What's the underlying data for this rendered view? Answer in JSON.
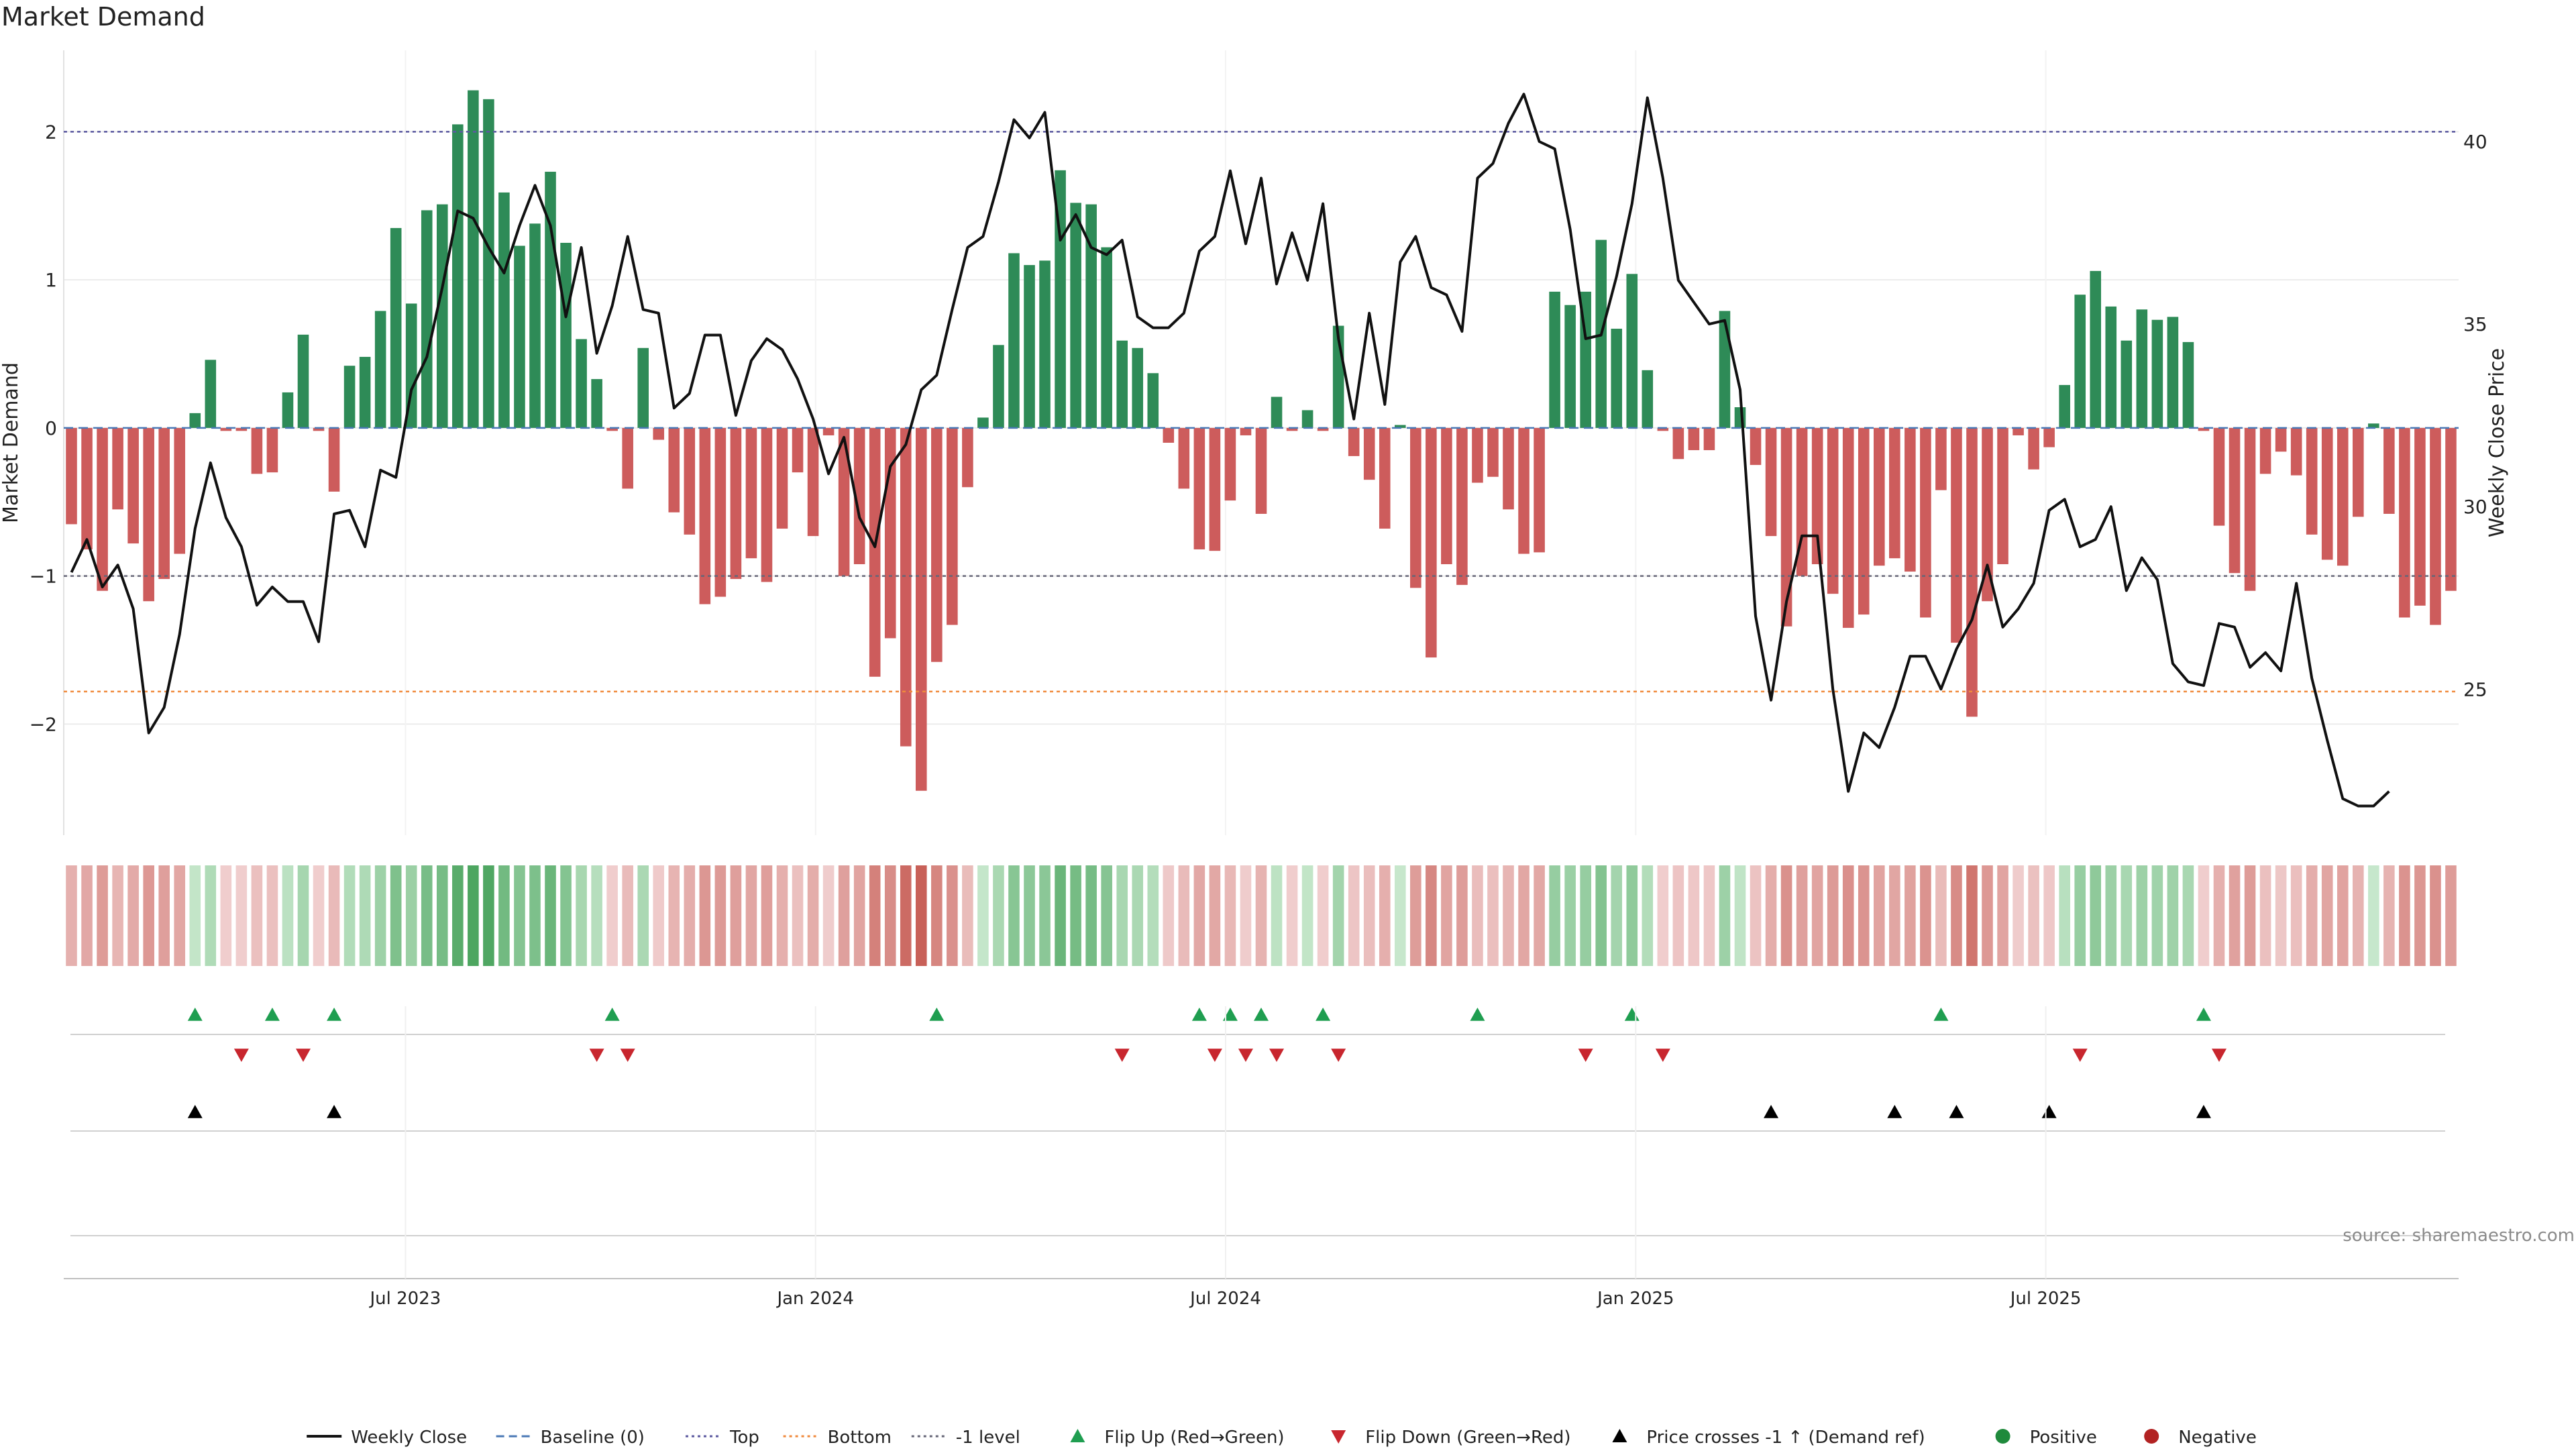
{
  "chart_data": {
    "type": "bar",
    "title": "Market Demand",
    "ylabel": "Market Demand",
    "y2label": "Weekly Close Price",
    "ylim": [
      -2.75,
      2.55
    ],
    "y2lim": [
      21.0,
      42.5
    ],
    "yticks": [
      {
        "v": 2,
        "label": "2"
      },
      {
        "v": 1,
        "label": "1"
      },
      {
        "v": 0,
        "label": "0"
      },
      {
        "v": -1,
        "label": "−1"
      },
      {
        "v": -2,
        "label": "−2"
      }
    ],
    "y2ticks": [
      {
        "v": 40,
        "label": "40"
      },
      {
        "v": 35,
        "label": "35"
      },
      {
        "v": 30,
        "label": "30"
      },
      {
        "v": 25,
        "label": "25"
      }
    ],
    "x_months_range": [
      2023.0,
      2025.92
    ],
    "xticks": [
      {
        "label": "Jul 2023",
        "m": 5
      },
      {
        "label": "Jan 2024",
        "m": 11
      },
      {
        "label": "Jul 2024",
        "m": 17
      },
      {
        "label": "Jan 2025",
        "m": 23
      },
      {
        "label": "Jul 2025",
        "m": 29
      }
    ],
    "reference_lines": {
      "top": 2.0,
      "bottom": -1.78,
      "minus_one": -1.0
    },
    "demand": [
      -0.65,
      -0.82,
      -1.1,
      -0.55,
      -0.78,
      -1.17,
      -1.02,
      -0.85,
      0.1,
      0.46,
      -0.02,
      -0.02,
      -0.31,
      -0.3,
      0.24,
      0.63,
      -0.02,
      -0.43,
      0.42,
      0.48,
      0.79,
      1.35,
      0.84,
      1.47,
      1.51,
      2.05,
      2.28,
      2.22,
      1.59,
      1.23,
      1.38,
      1.73,
      1.25,
      0.6,
      0.33,
      -0.02,
      -0.41,
      0.54,
      -0.08,
      -0.57,
      -0.72,
      -1.19,
      -1.14,
      -1.02,
      -0.88,
      -1.04,
      -0.68,
      -0.3,
      -0.73,
      -0.05,
      -1.0,
      -0.92,
      -1.68,
      -1.42,
      -2.15,
      -2.45,
      -1.58,
      -1.33,
      -0.4,
      0.07,
      0.56,
      1.18,
      1.1,
      1.13,
      1.74,
      1.52,
      1.51,
      1.22,
      0.59,
      0.54,
      0.37,
      -0.1,
      -0.41,
      -0.82,
      -0.83,
      -0.49,
      -0.05,
      -0.58,
      0.21,
      -0.02,
      0.12,
      -0.02,
      0.69,
      -0.19,
      -0.35,
      -0.68,
      0.02,
      -1.08,
      -1.55,
      -0.92,
      -1.06,
      -0.37,
      -0.33,
      -0.55,
      -0.85,
      -0.84,
      0.92,
      0.83,
      0.92,
      1.27,
      0.67,
      1.04,
      0.39,
      -0.02,
      -0.21,
      -0.15,
      -0.15,
      0.79,
      0.14,
      -0.25,
      -0.73,
      -1.34,
      -1.0,
      -0.92,
      -1.12,
      -1.35,
      -1.26,
      -0.93,
      -0.88,
      -0.97,
      -1.28,
      -0.42,
      -1.45,
      -1.95,
      -1.17,
      -0.92,
      -0.05,
      -0.28,
      -0.13,
      0.29,
      0.9,
      1.06,
      0.82,
      0.59,
      0.8,
      0.73,
      0.75,
      0.58,
      -0.02,
      -0.66,
      -0.98,
      -1.1,
      -0.31,
      -0.16,
      -0.32,
      -0.72,
      -0.89,
      -0.93,
      -0.6,
      0.03,
      -0.58,
      -1.28,
      -1.2,
      -1.33,
      -1.1
    ],
    "price": [
      28.2,
      29.1,
      27.8,
      28.4,
      27.2,
      23.8,
      24.5,
      26.5,
      29.4,
      31.2,
      29.7,
      28.9,
      27.3,
      27.8,
      27.4,
      27.4,
      26.3,
      29.8,
      29.9,
      28.9,
      31.0,
      30.8,
      33.2,
      34.1,
      36.0,
      38.1,
      37.9,
      37.1,
      36.4,
      37.7,
      38.8,
      37.7,
      35.2,
      37.1,
      34.2,
      35.5,
      37.4,
      35.4,
      35.3,
      32.7,
      33.1,
      34.7,
      34.7,
      32.5,
      34.0,
      34.6,
      34.3,
      33.5,
      32.4,
      30.9,
      31.9,
      29.7,
      28.9,
      31.1,
      31.7,
      33.2,
      33.6,
      35.4,
      37.1,
      37.4,
      38.9,
      40.6,
      40.1,
      40.8,
      37.3,
      38.0,
      37.1,
      36.9,
      37.3,
      35.2,
      34.9,
      34.9,
      35.3,
      37.0,
      37.4,
      39.2,
      37.2,
      39.0,
      36.1,
      37.5,
      36.2,
      38.3,
      34.6,
      32.4,
      35.3,
      32.8,
      36.7,
      37.4,
      36.0,
      35.8,
      34.8,
      39.0,
      39.4,
      40.5,
      41.3,
      40.0,
      39.8,
      37.6,
      34.6,
      34.7,
      36.3,
      38.3,
      41.2,
      39.0,
      36.2,
      35.6,
      35.0,
      35.1,
      33.2,
      27.0,
      24.7,
      27.4,
      29.2,
      29.2,
      25.0,
      22.2,
      23.8,
      23.4,
      24.5,
      25.9,
      25.9,
      25.0,
      26.1,
      26.9,
      28.4,
      26.7,
      27.2,
      27.9,
      29.9,
      30.2,
      28.9,
      29.1,
      30.0,
      27.7,
      28.6,
      28.0,
      25.7,
      25.2,
      25.1,
      26.8,
      26.7,
      25.6,
      26.0,
      25.5,
      27.9,
      25.3,
      23.6,
      22.0,
      21.8,
      21.8,
      22.2
    ],
    "signals": {
      "flip_up_idx": [
        8,
        13,
        17,
        35,
        56,
        73,
        75,
        77,
        81,
        91,
        101,
        121,
        138
      ],
      "flip_down_idx": [
        11,
        15,
        34,
        36,
        68,
        74,
        76,
        78,
        82,
        98,
        103,
        130,
        139
      ],
      "price_cross_idx": [
        8,
        17,
        110,
        118,
        122,
        128,
        138
      ]
    },
    "legend": [
      {
        "label": "Weekly Close",
        "kind": "line",
        "color": "#111111"
      },
      {
        "label": "Baseline (0)",
        "kind": "dash",
        "color": "#4a78b5"
      },
      {
        "label": "Top",
        "kind": "dot",
        "color": "#5c5aa0"
      },
      {
        "label": "Bottom",
        "kind": "dot",
        "color": "#f08a3c"
      },
      {
        "label": "-1 level",
        "kind": "dot",
        "color": "#666677"
      },
      {
        "label": "Flip Up (Red→Green)",
        "kind": "tri-up",
        "color": "#1f9e50"
      },
      {
        "label": "Flip Down (Green→Red)",
        "kind": "tri-down",
        "color": "#c8262e"
      },
      {
        "label": "Price crosses -1 ↑ (Demand ref)",
        "kind": "tri-up",
        "color": "#000000"
      },
      {
        "label": "Positive",
        "kind": "dot-fill",
        "color": "#1f8a3c"
      },
      {
        "label": "Negative",
        "kind": "dot-fill",
        "color": "#b22222"
      }
    ],
    "legend_placement": "bottom",
    "source": "source: sharemaestro.com",
    "colors": {
      "positive": "#2e8b57",
      "negative": "#cd5c5c",
      "grid": "#ececec",
      "axis": "#d0d0d0"
    }
  }
}
